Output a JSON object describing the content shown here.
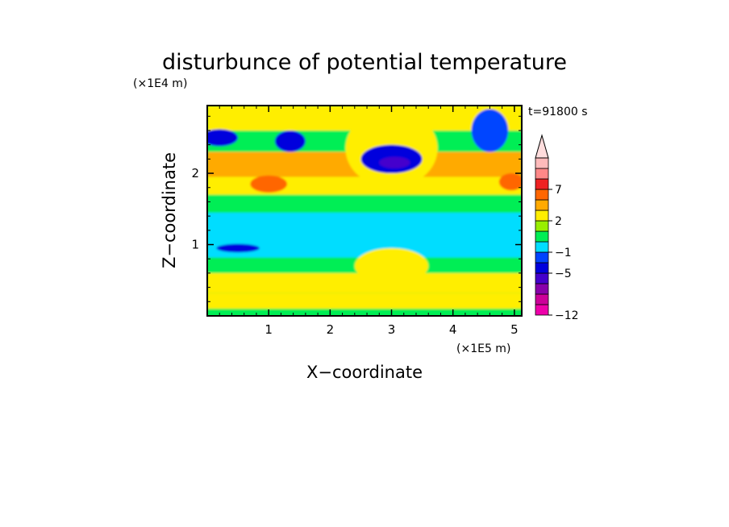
{
  "chart_data": {
    "type": "heatmap",
    "title": "disturbunce of potential temperature",
    "xlabel": "X−coordinate",
    "ylabel": "Z−coordinate",
    "x_unit": "(×1E5 m)",
    "y_unit": "(×1E4 m)",
    "time_label": "t=91800 s",
    "xlim": [
      0,
      5.12
    ],
    "ylim": [
      0,
      2.95
    ],
    "x_ticks": [
      {
        "value": 1,
        "label": "1"
      },
      {
        "value": 2,
        "label": "2"
      },
      {
        "value": 3,
        "label": "3"
      },
      {
        "value": 4,
        "label": "4"
      },
      {
        "value": 5,
        "label": "5"
      }
    ],
    "y_ticks": [
      {
        "value": 1,
        "label": "1"
      },
      {
        "value": 2,
        "label": "2"
      }
    ],
    "colorbar": {
      "extend": "max",
      "levels": [
        -12,
        -10,
        -8,
        -6,
        -5,
        -3,
        -1,
        0,
        1,
        2,
        3,
        5,
        7,
        9,
        11
      ],
      "colors": [
        "#ee00aa",
        "#cc0099",
        "#8800aa",
        "#4400cc",
        "#0000dd",
        "#0044ff",
        "#00ddff",
        "#00ee55",
        "#99ee00",
        "#ffee00",
        "#ffaa00",
        "#ff6600",
        "#ee2222",
        "#ff8888",
        "#ffbbbb"
      ],
      "extend_color": "#ffdddd",
      "labeled_ticks": [
        {
          "value": -12,
          "label": "−12"
        },
        {
          "value": -5,
          "label": "−5"
        },
        {
          "value": -1,
          "label": "−1"
        },
        {
          "value": 2,
          "label": "2"
        },
        {
          "value": 7,
          "label": "7"
        }
      ]
    },
    "z_bands": [
      {
        "z0": 0.0,
        "z1": 0.1,
        "value": 0.5
      },
      {
        "z0": 0.1,
        "z1": 0.32,
        "value": 2.5
      },
      {
        "z0": 0.32,
        "z1": 0.6,
        "value": 2.0
      },
      {
        "z0": 0.6,
        "z1": 0.82,
        "value": 0.5
      },
      {
        "z0": 0.82,
        "z1": 1.45,
        "value": -0.5
      },
      {
        "z0": 1.45,
        "z1": 1.7,
        "value": 0.5
      },
      {
        "z0": 1.7,
        "z1": 1.95,
        "value": 2.0
      },
      {
        "z0": 1.95,
        "z1": 2.3,
        "value": 3.5
      },
      {
        "z0": 2.3,
        "z1": 2.6,
        "value": 0.5
      },
      {
        "z0": 2.6,
        "z1": 2.95,
        "value": 2.0
      }
    ],
    "features": [
      {
        "x": 3.0,
        "z": 2.35,
        "rx": 0.75,
        "rz": 0.55,
        "value": 2.5
      },
      {
        "x": 3.0,
        "z": 2.2,
        "rx": 0.5,
        "rz": 0.2,
        "value": -4.0
      },
      {
        "x": 3.05,
        "z": 2.15,
        "rx": 0.25,
        "rz": 0.08,
        "value": -5.5
      },
      {
        "x": 0.2,
        "z": 2.5,
        "rx": 0.3,
        "rz": 0.12,
        "value": -4.0
      },
      {
        "x": 1.35,
        "z": 2.45,
        "rx": 0.25,
        "rz": 0.15,
        "value": -4.0
      },
      {
        "x": 4.95,
        "z": 1.88,
        "rx": 0.2,
        "rz": 0.12,
        "value": 5.5
      },
      {
        "x": 1.0,
        "z": 1.85,
        "rx": 0.3,
        "rz": 0.12,
        "value": 5.5
      },
      {
        "x": 3.0,
        "z": 0.7,
        "rx": 0.6,
        "rz": 0.25,
        "value": 2.0
      },
      {
        "x": 0.5,
        "z": 0.95,
        "rx": 0.35,
        "rz": 0.06,
        "value": -4.0
      },
      {
        "x": 4.6,
        "z": 2.6,
        "rx": 0.3,
        "rz": 0.3,
        "value": -2.0
      }
    ]
  }
}
